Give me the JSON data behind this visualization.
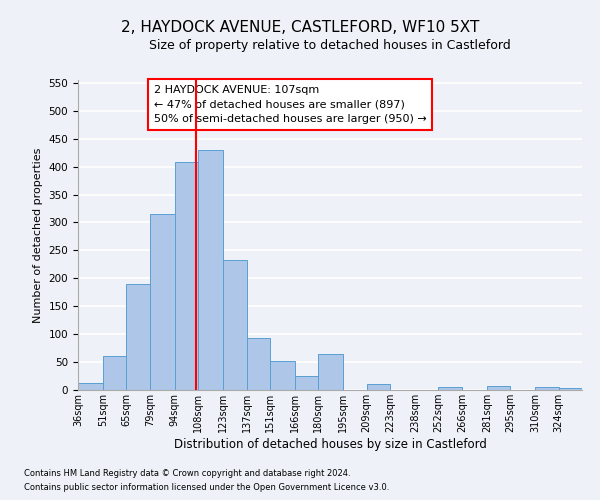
{
  "title": "2, HAYDOCK AVENUE, CASTLEFORD, WF10 5XT",
  "subtitle": "Size of property relative to detached houses in Castleford",
  "xlabel": "Distribution of detached houses by size in Castleford",
  "ylabel": "Number of detached properties",
  "bar_labels": [
    "36sqm",
    "51sqm",
    "65sqm",
    "79sqm",
    "94sqm",
    "108sqm",
    "123sqm",
    "137sqm",
    "151sqm",
    "166sqm",
    "180sqm",
    "195sqm",
    "209sqm",
    "223sqm",
    "238sqm",
    "252sqm",
    "266sqm",
    "281sqm",
    "295sqm",
    "310sqm",
    "324sqm"
  ],
  "bar_values": [
    12,
    60,
    190,
    315,
    408,
    430,
    233,
    93,
    52,
    25,
    65,
    0,
    10,
    0,
    0,
    5,
    0,
    8,
    0,
    5,
    3
  ],
  "bar_edges": [
    36,
    51,
    65,
    79,
    94,
    108,
    123,
    137,
    151,
    166,
    180,
    195,
    209,
    223,
    238,
    252,
    266,
    281,
    295,
    310,
    324,
    338
  ],
  "bar_color": "#aec6e8",
  "bar_edge_color": "#5a9fd4",
  "vline_x": 107,
  "vline_color": "red",
  "ylim": [
    0,
    555
  ],
  "yticks": [
    0,
    50,
    100,
    150,
    200,
    250,
    300,
    350,
    400,
    450,
    500,
    550
  ],
  "annotation_title": "2 HAYDOCK AVENUE: 107sqm",
  "annotation_line1": "← 47% of detached houses are smaller (897)",
  "annotation_line2": "50% of semi-detached houses are larger (950) →",
  "annotation_box_color": "white",
  "annotation_box_edge_color": "red",
  "footnote1": "Contains HM Land Registry data © Crown copyright and database right 2024.",
  "footnote2": "Contains public sector information licensed under the Open Government Licence v3.0.",
  "background_color": "#eef2f8",
  "grid_color": "white",
  "title_fontsize": 11,
  "subtitle_fontsize": 9
}
